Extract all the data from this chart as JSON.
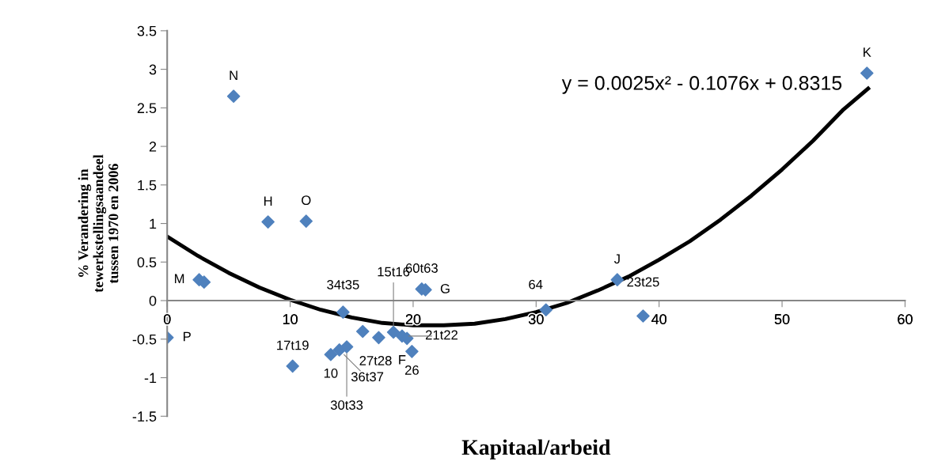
{
  "chart_data": {
    "type": "scatter",
    "xlabel": "Kapitaal/arbeid",
    "ylabel": "% Verandering in\ntewerkstellingsaandeel\ntussen 1970 en 2006",
    "xlim": [
      0,
      60
    ],
    "ylim": [
      -1.5,
      3.5
    ],
    "xticks": [
      0,
      10,
      20,
      30,
      40,
      50,
      60
    ],
    "yticks": [
      -1.5,
      -1,
      -0.5,
      0,
      0.5,
      1,
      1.5,
      2,
      2.5,
      3,
      3.5
    ],
    "grid": false,
    "marker": "diamond",
    "series": [
      {
        "color": "#4f81bd",
        "x": [
          0,
          2.6,
          3.0,
          5.4,
          8.2,
          11.3,
          10.2,
          13.3,
          14.0,
          14.6,
          14.3,
          15.9,
          17.2,
          18.4,
          19.1,
          19.5,
          19.9,
          20.7,
          21.0,
          30.8,
          36.6,
          38.7,
          56.9
        ],
        "values": [
          -0.48,
          0.27,
          0.24,
          2.65,
          1.02,
          1.03,
          -0.85,
          -0.7,
          -0.64,
          -0.6,
          -0.15,
          -0.4,
          -0.48,
          -0.41,
          -0.46,
          -0.49,
          -0.66,
          0.15,
          0.14,
          -0.12,
          0.27,
          -0.2,
          2.95
        ]
      },
      {
        "type": "line",
        "marker": "none",
        "color": "#000000",
        "x": [
          0,
          2.5,
          5,
          7.5,
          10,
          12.5,
          15,
          17.5,
          20,
          22.5,
          25,
          27.5,
          30,
          32.5,
          35,
          37.5,
          40,
          42.5,
          45,
          47.5,
          50,
          52.5,
          55,
          57
        ],
        "values": [
          0.83,
          0.58,
          0.36,
          0.17,
          0.01,
          -0.12,
          -0.22,
          -0.29,
          -0.32,
          -0.32,
          -0.3,
          -0.24,
          -0.15,
          -0.03,
          0.13,
          0.31,
          0.53,
          0.77,
          1.05,
          1.36,
          1.7,
          2.07,
          2.48,
          2.75
        ]
      }
    ],
    "annotations": [
      {
        "text": "P",
        "x": 0,
        "y": -0.48
      },
      {
        "text": "M",
        "x": 2.6,
        "y": 0.27
      },
      {
        "text": "N",
        "x": 5.4,
        "y": 2.65
      },
      {
        "text": "H",
        "x": 8.2,
        "y": 1.02
      },
      {
        "text": "O",
        "x": 11.3,
        "y": 1.03
      },
      {
        "text": "17t19",
        "x": 10.2,
        "y": -0.85
      },
      {
        "text": "10",
        "x": 13.3,
        "y": -0.7
      },
      {
        "text": "36t37",
        "x": 14.0,
        "y": -0.64
      },
      {
        "text": "30t33",
        "x": 14.6,
        "y": -0.6
      },
      {
        "text": "34t35",
        "x": 14.3,
        "y": -0.15
      },
      {
        "text": "27t28",
        "x": 15.9,
        "y": -0.4
      },
      {
        "text": "F",
        "x": 17.2,
        "y": -0.48
      },
      {
        "text": "15t16",
        "x": 18.4,
        "y": -0.41
      },
      {
        "text": "21t22",
        "x": 19.1,
        "y": -0.46
      },
      {
        "text": "26",
        "x": 19.9,
        "y": -0.66
      },
      {
        "text": "60t63",
        "x": 20.7,
        "y": 0.15
      },
      {
        "text": "G",
        "x": 21.0,
        "y": 0.14
      },
      {
        "text": "64",
        "x": 30.8,
        "y": -0.12
      },
      {
        "text": "J",
        "x": 36.6,
        "y": 0.27
      },
      {
        "text": "23t25",
        "x": 38.7,
        "y": -0.2
      },
      {
        "text": "K",
        "x": 56.9,
        "y": 2.95
      },
      "y = 0.0025x² - 0.1076x + 0.8315"
    ]
  }
}
